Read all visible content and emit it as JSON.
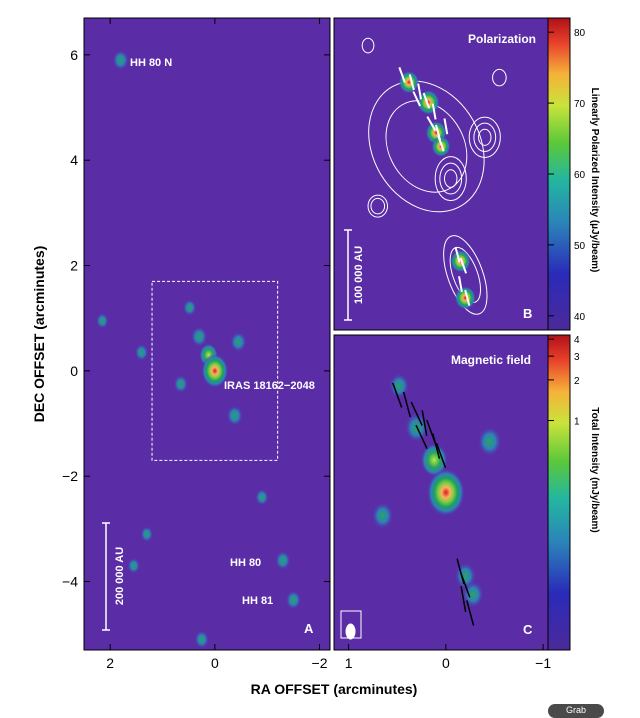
{
  "figure": {
    "x_axis_label": "RA OFFSET (arcminutes)",
    "y_axis_label": "DEC OFFSET (arcminutes)",
    "corner_badge": "Grab"
  },
  "colors": {
    "background": "#5a2ca6",
    "frame": "#000000",
    "annotation": "#ffffff"
  },
  "chart_data": [
    {
      "type": "heatmap",
      "panel": "A",
      "title": "",
      "xlabel": "RA OFFSET (arcminutes)",
      "ylabel": "DEC OFFSET (arcminutes)",
      "xlim": [
        2.5,
        -2.2
      ],
      "ylim": [
        -5.3,
        6.7
      ],
      "x_ticks": [
        2,
        0,
        -2
      ],
      "x_tick_labels": [
        "2",
        "0",
        "−2"
      ],
      "y_ticks": [
        6,
        4,
        2,
        0,
        -2,
        -4
      ],
      "y_tick_labels": [
        "6",
        "4",
        "2",
        "0",
        "−2",
        "−4"
      ],
      "panel_letter": "A",
      "annotations": [
        "HH 80 N",
        "IRAS 18162−2048",
        "HH 80",
        "HH 81"
      ],
      "scale_bar_label": "200 000 AU",
      "zoom_box_ra": [
        1.2,
        -1.2
      ],
      "zoom_box_dec": [
        1.7,
        -1.7
      ],
      "sources": [
        {
          "ra": 1.8,
          "dec": 5.9,
          "peak": 0.45
        },
        {
          "ra": 0.48,
          "dec": 1.2,
          "peak": 0.3
        },
        {
          "ra": 0.3,
          "dec": 0.65,
          "peak": 0.45
        },
        {
          "ra": 0.12,
          "dec": 0.3,
          "peak": 0.55
        },
        {
          "ra": 0.0,
          "dec": 0.0,
          "peak": 1.0
        },
        {
          "ra": -0.45,
          "dec": 0.55,
          "peak": 0.45
        },
        {
          "ra": 0.65,
          "dec": -0.25,
          "peak": 0.35
        },
        {
          "ra": -0.38,
          "dec": -0.85,
          "peak": 0.45
        },
        {
          "ra": 1.4,
          "dec": 0.35,
          "peak": 0.3
        },
        {
          "ra": 2.15,
          "dec": 0.95,
          "peak": 0.25
        },
        {
          "ra": -0.9,
          "dec": -2.4,
          "peak": 0.3
        },
        {
          "ra": -1.3,
          "dec": -3.6,
          "peak": 0.4
        },
        {
          "ra": -1.5,
          "dec": -4.35,
          "peak": 0.4
        },
        {
          "ra": 1.3,
          "dec": -3.1,
          "peak": 0.25
        },
        {
          "ra": 0.25,
          "dec": -5.1,
          "peak": 0.35
        },
        {
          "ra": 1.55,
          "dec": -3.7,
          "peak": 0.25
        }
      ]
    },
    {
      "type": "heatmap",
      "panel": "B",
      "title": "Polarization",
      "xlim": [
        1.15,
        -1.05
      ],
      "ylim": [
        -1.7,
        1.7
      ],
      "panel_letter": "B",
      "scale_bar_label": "100 000 AU",
      "colorbar_label": "Linearly Polarized Intensity (µJy/beam)",
      "colorbar_ticks": [
        80,
        70,
        60,
        50,
        40
      ],
      "colorbar_range": [
        38,
        82
      ],
      "sources": [
        {
          "ra": 0.38,
          "dec": 1.0,
          "peak": 0.8
        },
        {
          "ra": 0.18,
          "dec": 0.78,
          "peak": 0.95
        },
        {
          "ra": 0.1,
          "dec": 0.45,
          "peak": 0.85
        },
        {
          "ra": 0.05,
          "dec": 0.3,
          "peak": 0.7
        },
        {
          "ra": -0.15,
          "dec": -0.95,
          "peak": 0.8
        },
        {
          "ra": -0.2,
          "dec": -1.35,
          "peak": 0.85
        }
      ],
      "contours": [
        {
          "ra": 0.2,
          "dec": 0.3,
          "size_ra": 0.55,
          "size_dec": 0.75,
          "angle": -30,
          "levels": 2
        },
        {
          "ra": -0.05,
          "dec": -0.05,
          "size_ra": 0.16,
          "size_dec": 0.24,
          "angle": 0,
          "levels": 3
        },
        {
          "ra": -0.4,
          "dec": 0.4,
          "size_ra": 0.16,
          "size_dec": 0.22,
          "angle": 0,
          "levels": 3
        },
        {
          "ra": 0.7,
          "dec": -0.35,
          "size_ra": 0.1,
          "size_dec": 0.12,
          "angle": 0,
          "levels": 2
        },
        {
          "ra": -0.2,
          "dec": -1.1,
          "size_ra": 0.18,
          "size_dec": 0.45,
          "angle": -20,
          "levels": 2
        },
        {
          "ra": 0.8,
          "dec": 1.4,
          "size_ra": 0.06,
          "size_dec": 0.08,
          "angle": 0,
          "levels": 1
        },
        {
          "ra": -0.55,
          "dec": 1.05,
          "size_ra": 0.07,
          "size_dec": 0.09,
          "angle": 0,
          "levels": 1
        }
      ],
      "vectors": [
        {
          "ra": 0.45,
          "dec": 1.08,
          "angle": 70
        },
        {
          "ra": 0.35,
          "dec": 1.0,
          "angle": 75
        },
        {
          "ra": 0.27,
          "dec": 0.9,
          "angle": 80
        },
        {
          "ra": 0.2,
          "dec": 0.8,
          "angle": 70
        },
        {
          "ra": 0.12,
          "dec": 0.68,
          "angle": 80
        },
        {
          "ra": 0.15,
          "dec": 0.55,
          "angle": 60
        },
        {
          "ra": 0.08,
          "dec": 0.45,
          "angle": 75
        },
        {
          "ra": 0.05,
          "dec": 0.33,
          "angle": 70
        },
        {
          "ra": 0.3,
          "dec": 0.82,
          "angle": 65
        },
        {
          "ra": 0.0,
          "dec": 0.52,
          "angle": 80
        },
        {
          "ra": -0.12,
          "dec": -0.88,
          "angle": 75
        },
        {
          "ra": -0.18,
          "dec": -1.0,
          "angle": 70
        },
        {
          "ra": -0.15,
          "dec": -1.2,
          "angle": 80
        },
        {
          "ra": -0.22,
          "dec": -1.35,
          "angle": 75
        }
      ]
    },
    {
      "type": "heatmap",
      "panel": "C",
      "title": "Magnetic field",
      "xlabel": "",
      "xlim": [
        1.15,
        -1.05
      ],
      "ylim": [
        -1.7,
        1.7
      ],
      "x_ticks": [
        1,
        0,
        -1
      ],
      "x_tick_labels": [
        "1",
        "0",
        "−1"
      ],
      "panel_letter": "C",
      "colorbar_label": "Total Intensity (mJy/beam)",
      "colorbar_ticks": [
        4,
        3,
        2,
        1
      ],
      "colorbar_range": [
        0.02,
        4.3
      ],
      "sources": [
        {
          "ra": 0.48,
          "dec": 1.15,
          "peak": 0.3
        },
        {
          "ra": 0.3,
          "dec": 0.7,
          "peak": 0.45
        },
        {
          "ra": 0.12,
          "dec": 0.35,
          "peak": 0.55
        },
        {
          "ra": 0.0,
          "dec": 0.0,
          "peak": 1.0
        },
        {
          "ra": -0.45,
          "dec": 0.55,
          "peak": 0.45
        },
        {
          "ra": 0.65,
          "dec": -0.25,
          "peak": 0.35
        },
        {
          "ra": -0.2,
          "dec": -0.9,
          "peak": 0.35
        },
        {
          "ra": -0.28,
          "dec": -1.1,
          "peak": 0.35
        }
      ],
      "vectors": [
        {
          "ra": 0.5,
          "dec": 1.05,
          "angle": -20
        },
        {
          "ra": 0.4,
          "dec": 0.95,
          "angle": -15
        },
        {
          "ra": 0.3,
          "dec": 0.85,
          "angle": -25
        },
        {
          "ra": 0.22,
          "dec": 0.75,
          "angle": -10
        },
        {
          "ra": 0.15,
          "dec": 0.65,
          "angle": -20
        },
        {
          "ra": 0.1,
          "dec": 0.5,
          "angle": -15
        },
        {
          "ra": 0.05,
          "dec": 0.4,
          "angle": -20
        },
        {
          "ra": 0.25,
          "dec": 0.6,
          "angle": -25
        },
        {
          "ra": -0.15,
          "dec": -0.85,
          "angle": -15
        },
        {
          "ra": -0.2,
          "dec": -1.0,
          "angle": -20
        },
        {
          "ra": -0.18,
          "dec": -1.15,
          "angle": -10
        },
        {
          "ra": -0.25,
          "dec": -1.3,
          "angle": -15
        }
      ],
      "beam": {
        "ra": 0.98,
        "dec": -1.5
      }
    }
  ]
}
